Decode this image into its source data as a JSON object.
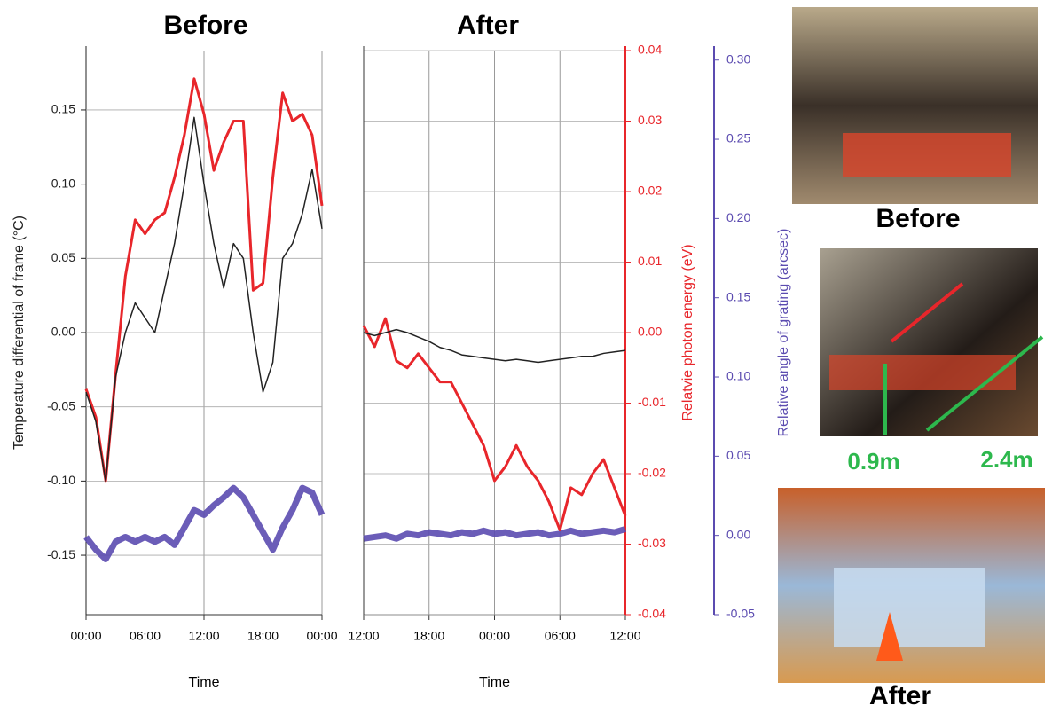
{
  "chart_data": [
    {
      "type": "line",
      "title": "Before",
      "xlabel": "Time",
      "ylabel": "Temperature differential of frame  (°C)",
      "x": [
        0,
        1,
        2,
        3,
        4,
        5,
        6,
        7,
        8,
        9,
        10,
        11,
        12,
        13,
        14,
        15,
        16,
        17,
        18,
        19,
        20,
        21,
        22,
        23,
        24
      ],
      "xlim": [
        0,
        24
      ],
      "xticks": [
        {
          "value": 0,
          "label": "00:00"
        },
        {
          "value": 6,
          "label": "06:00"
        },
        {
          "value": 12,
          "label": "12:00"
        },
        {
          "value": 18,
          "label": "18:00"
        },
        {
          "value": 24,
          "label": "00:00"
        }
      ],
      "ylim": [
        -0.19,
        0.19
      ],
      "yticks": [
        {
          "value": 0.15,
          "label": "0.15"
        },
        {
          "value": 0.1,
          "label": "0.10"
        },
        {
          "value": 0.05,
          "label": "0.05"
        },
        {
          "value": 0,
          "label": "0.00"
        },
        {
          "value": -0.05,
          "label": "-0.05"
        },
        {
          "value": -0.1,
          "label": "-0.10"
        },
        {
          "value": -0.15,
          "label": "-0.15"
        }
      ],
      "grid": true,
      "series": [
        {
          "color": "#222222",
          "axis": "y",
          "values": [
            -0.04,
            -0.06,
            -0.1,
            -0.03,
            0,
            0.02,
            0.01,
            0,
            0.03,
            0.06,
            0.1,
            0.145,
            0.1,
            0.06,
            0.03,
            0.06,
            0.05,
            0,
            -0.04,
            -0.02,
            0.05,
            0.06,
            0.08,
            0.11,
            0.07
          ]
        },
        {
          "color": "#e8262b",
          "axis": "y2",
          "values": [
            -0.008,
            -0.012,
            -0.021,
            -0.006,
            0.008,
            0.016,
            0.014,
            0.016,
            0.017,
            0.022,
            0.028,
            0.036,
            0.031,
            0.023,
            0.027,
            0.03,
            0.03,
            0.006,
            0.007,
            0.022,
            0.034,
            0.03,
            0.031,
            0.028,
            0.018
          ]
        },
        {
          "color": "#5b4bb0",
          "axis": "y3",
          "values": [
            -0.001,
            -0.009,
            -0.015,
            -0.004,
            -0.001,
            -0.004,
            -0.001,
            -0.004,
            -0.001,
            -0.006,
            0.005,
            0.016,
            0.013,
            0.019,
            0.024,
            0.03,
            0.024,
            0.013,
            0.002,
            -0.009,
            0.005,
            0.016,
            0.03,
            0.027,
            0.013
          ]
        }
      ]
    },
    {
      "type": "line",
      "title": "After",
      "xlabel": "Time",
      "x": [
        0,
        1,
        2,
        3,
        4,
        5,
        6,
        7,
        8,
        9,
        10,
        11,
        12,
        13,
        14,
        15,
        16,
        17,
        18,
        19,
        20,
        21,
        22,
        23,
        24
      ],
      "xlim": [
        0,
        24
      ],
      "xticks": [
        {
          "value": 0,
          "label": "12:00"
        },
        {
          "value": 6,
          "label": "18:00"
        },
        {
          "value": 12,
          "label": "00:00"
        },
        {
          "value": 18,
          "label": "06:00"
        },
        {
          "value": 24,
          "label": "12:00"
        }
      ],
      "y2label": "Relatvie photon energy (eV)",
      "y2lim": [
        -0.04,
        0.04
      ],
      "y2ticks": [
        {
          "value": 0.04,
          "label": "0.04"
        },
        {
          "value": 0.03,
          "label": "0.03"
        },
        {
          "value": 0.02,
          "label": "0.02"
        },
        {
          "value": 0.01,
          "label": "0.01"
        },
        {
          "value": 0,
          "label": "0.00"
        },
        {
          "value": -0.01,
          "label": "-0.01"
        },
        {
          "value": -0.02,
          "label": "-0.02"
        },
        {
          "value": -0.03,
          "label": "-0.03"
        },
        {
          "value": -0.04,
          "label": "-0.04"
        }
      ],
      "y3label": "Relative angle of grating (arcsec)",
      "y3lim": [
        -0.05,
        0.306
      ],
      "y3ticks": [
        {
          "value": 0.3,
          "label": "0.30"
        },
        {
          "value": 0.25,
          "label": "0.25"
        },
        {
          "value": 0.2,
          "label": "0.20"
        },
        {
          "value": 0.15,
          "label": "0.15"
        },
        {
          "value": 0.1,
          "label": "0.10"
        },
        {
          "value": 0.05,
          "label": "0.05"
        },
        {
          "value": 0,
          "label": "0.00"
        },
        {
          "value": -0.05,
          "label": "-0.05"
        }
      ],
      "grid": true,
      "series": [
        {
          "color": "#222222",
          "axis": "y",
          "values": [
            0,
            -0.002,
            0,
            0.002,
            0,
            -0.003,
            -0.006,
            -0.01,
            -0.012,
            -0.015,
            -0.016,
            -0.017,
            -0.018,
            -0.019,
            -0.018,
            -0.019,
            -0.02,
            -0.019,
            -0.018,
            -0.017,
            -0.016,
            -0.016,
            -0.014,
            -0.013,
            -0.012
          ]
        },
        {
          "color": "#e8262b",
          "axis": "y2",
          "values": [
            0.001,
            -0.002,
            0.002,
            -0.004,
            -0.005,
            -0.003,
            -0.005,
            -0.007,
            -0.007,
            -0.01,
            -0.013,
            -0.016,
            -0.021,
            -0.019,
            -0.016,
            -0.019,
            -0.021,
            -0.024,
            -0.028,
            -0.022,
            -0.023,
            -0.02,
            -0.018,
            -0.022,
            -0.026
          ]
        },
        {
          "color": "#5b4bb0",
          "axis": "y3",
          "values": [
            -0.002,
            -0.001,
            0,
            -0.002,
            0.001,
            0,
            0.002,
            0.001,
            0,
            0.002,
            0.001,
            0.003,
            0.001,
            0.002,
            0,
            0.001,
            0.002,
            0,
            0.001,
            0.003,
            0.001,
            0.002,
            0.003,
            0.002,
            0.004
          ]
        }
      ]
    }
  ],
  "photo_captions": {
    "before": "Before",
    "height": "0.9m",
    "width": "2.4m",
    "after": "After"
  }
}
